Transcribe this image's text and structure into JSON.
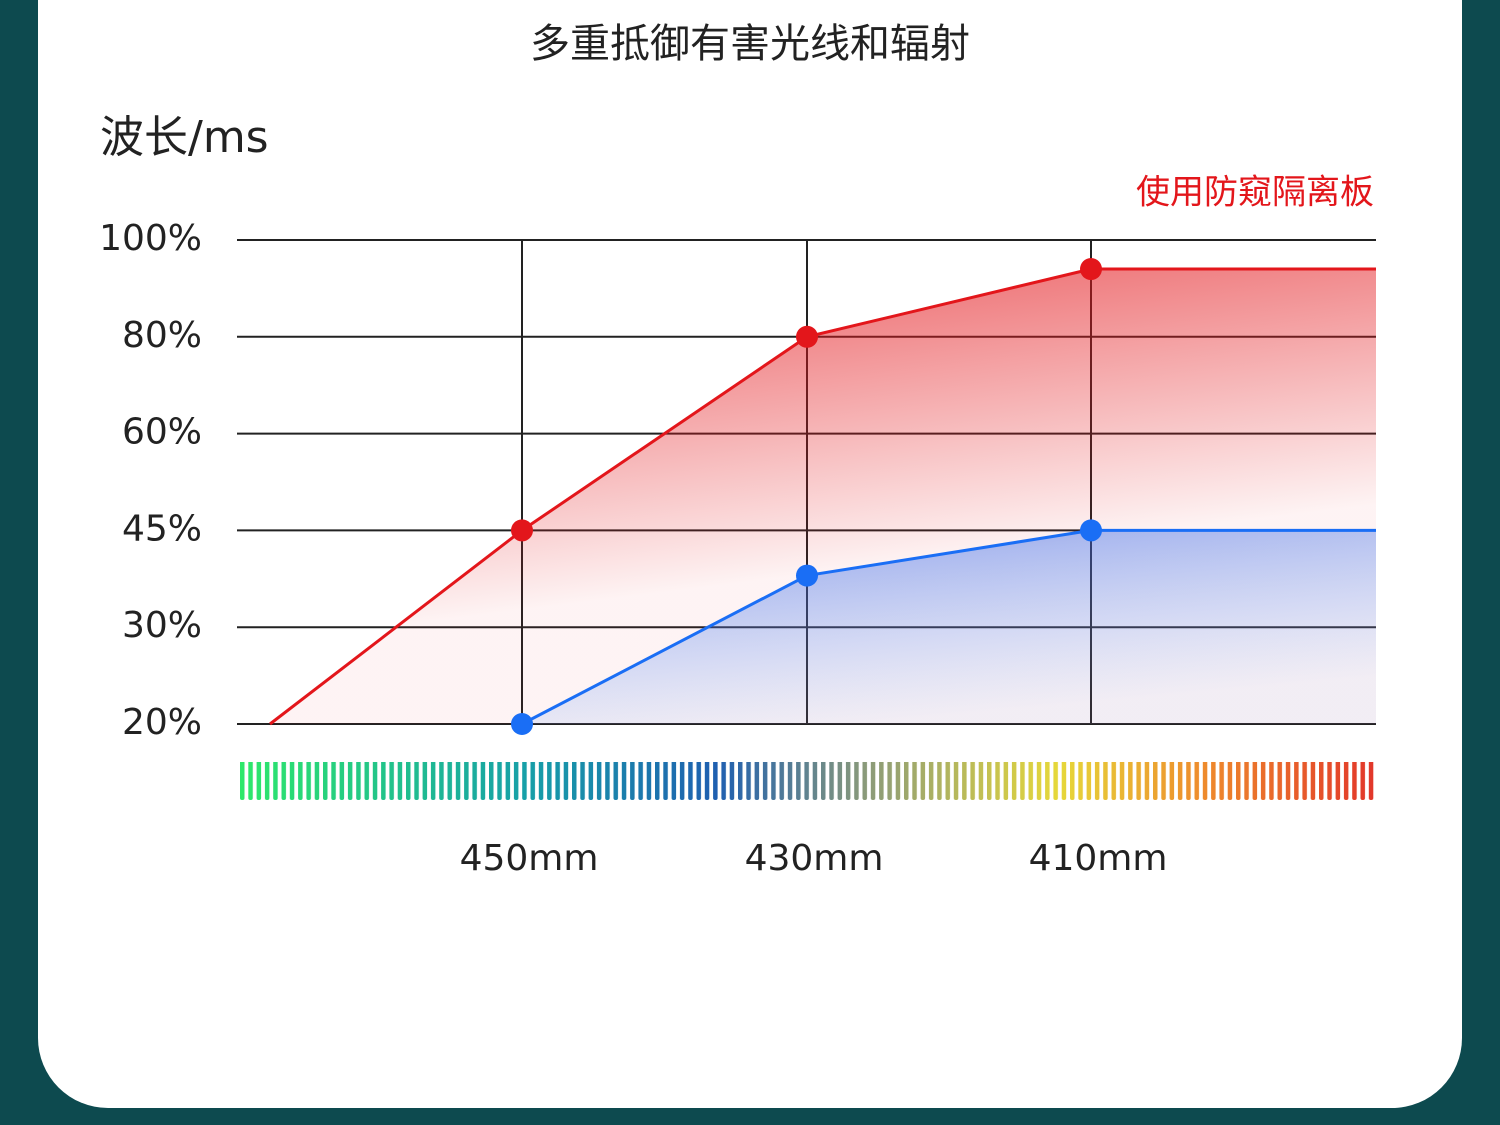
{
  "chart_data": {
    "type": "line",
    "title": "多重抵御有害光线和辐射",
    "ylabel": "波长/ms",
    "categories": [
      null,
      "450mm",
      "430mm",
      "410mm",
      null
    ],
    "series": [
      {
        "name": "使用防窥隔离板",
        "color": "#e3161b",
        "values": [
          20,
          45,
          80,
          94,
          94
        ]
      },
      {
        "color": "#1a6ef5",
        "values": [
          null,
          20,
          38,
          45,
          45
        ]
      }
    ],
    "ylim": [
      20,
      100
    ],
    "yticks": [
      {
        "value": 20,
        "label": "20%"
      },
      {
        "value": 30,
        "label": "30%"
      },
      {
        "value": 45,
        "label": "45%"
      },
      {
        "value": 60,
        "label": "60%"
      },
      {
        "value": 80,
        "label": "80%"
      },
      {
        "value": 100,
        "label": "100%"
      }
    ],
    "grid": true
  }
}
